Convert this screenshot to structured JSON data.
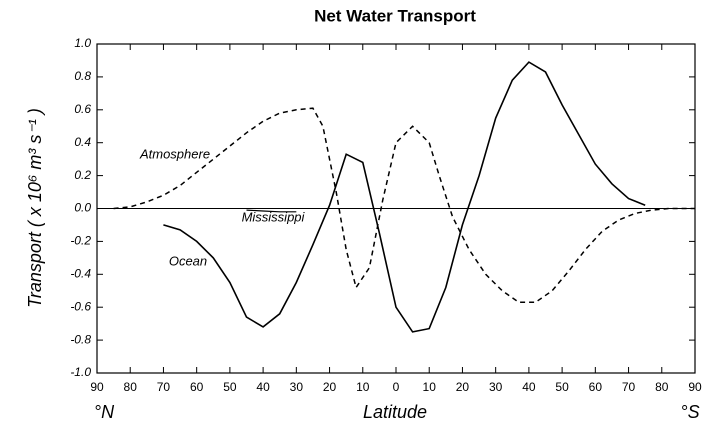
{
  "chart_data": {
    "type": "line",
    "title": "Net Water Transport",
    "x_label": "Latitude",
    "y_label": "Transport ( x 10⁶ m³ s⁻¹ )",
    "x_left_label": "°N",
    "x_right_label": "°S",
    "xlim": [
      90,
      -90
    ],
    "xticks": [
      90,
      80,
      70,
      60,
      50,
      40,
      30,
      20,
      10,
      0,
      {
        "value": -10,
        "label": "10"
      },
      {
        "value": -20,
        "label": "20"
      },
      {
        "value": -30,
        "label": "30"
      },
      {
        "value": -40,
        "label": "40"
      },
      {
        "value": -50,
        "label": "50"
      },
      {
        "value": -60,
        "label": "60"
      },
      {
        "value": -70,
        "label": "70"
      },
      {
        "value": -80,
        "label": "80"
      },
      {
        "value": -90,
        "label": "90"
      }
    ],
    "ylim": [
      -1,
      1
    ],
    "yticks": [
      {
        "value": 1,
        "label": "1.0"
      },
      0.8,
      0.6,
      0.4,
      0.2,
      {
        "value": 0,
        "label": "0.0"
      },
      -0.2,
      -0.4,
      -0.6,
      -0.8,
      {
        "value": -1,
        "label": "-1.0"
      }
    ],
    "series": [
      {
        "name": "Atmosphere",
        "color": "#000000",
        "line_style": "dashed",
        "x": [
          85,
          80,
          75,
          70,
          65,
          60,
          55,
          50,
          45,
          40,
          35,
          30,
          25,
          22,
          18,
          15,
          12,
          8,
          4,
          0,
          -5,
          -10,
          -13,
          -17,
          -22,
          -27,
          -32,
          -37,
          -42,
          -47,
          -52,
          -57,
          -62,
          -67,
          -72,
          -77,
          -82,
          -90
        ],
        "values": [
          0,
          0.01,
          0.04,
          0.08,
          0.14,
          0.22,
          0.3,
          0.38,
          0.46,
          0.53,
          0.58,
          0.6,
          0.61,
          0.5,
          0.1,
          -0.25,
          -0.48,
          -0.36,
          0.05,
          0.4,
          0.5,
          0.4,
          0.2,
          -0.05,
          -0.25,
          -0.4,
          -0.5,
          -0.57,
          -0.57,
          -0.5,
          -0.38,
          -0.25,
          -0.14,
          -0.07,
          -0.03,
          -0.01,
          0,
          0
        ]
      },
      {
        "name": "Ocean",
        "color": "#000000",
        "line_style": "solid",
        "x": [
          70,
          65,
          60,
          55,
          50,
          45,
          40,
          35,
          30,
          25,
          20,
          15,
          10,
          5,
          0,
          -5,
          -10,
          -15,
          -20,
          -25,
          -30,
          -35,
          -40,
          -45,
          -50,
          -55,
          -60,
          -65,
          -70,
          -75
        ],
        "values": [
          -0.1,
          -0.13,
          -0.2,
          -0.3,
          -0.45,
          -0.66,
          -0.72,
          -0.64,
          -0.45,
          -0.22,
          0.02,
          0.33,
          0.28,
          -0.15,
          -0.6,
          -0.75,
          -0.73,
          -0.48,
          -0.1,
          0.2,
          0.55,
          0.78,
          0.89,
          0.83,
          0.63,
          0.45,
          0.27,
          0.15,
          0.06,
          0.02
        ]
      },
      {
        "name": "Mississippi",
        "color": "#000000",
        "line_style": "solid",
        "x": [
          45,
          40,
          35,
          30
        ],
        "values": [
          -0.01,
          -0.015,
          -0.02,
          -0.02
        ]
      }
    ]
  }
}
